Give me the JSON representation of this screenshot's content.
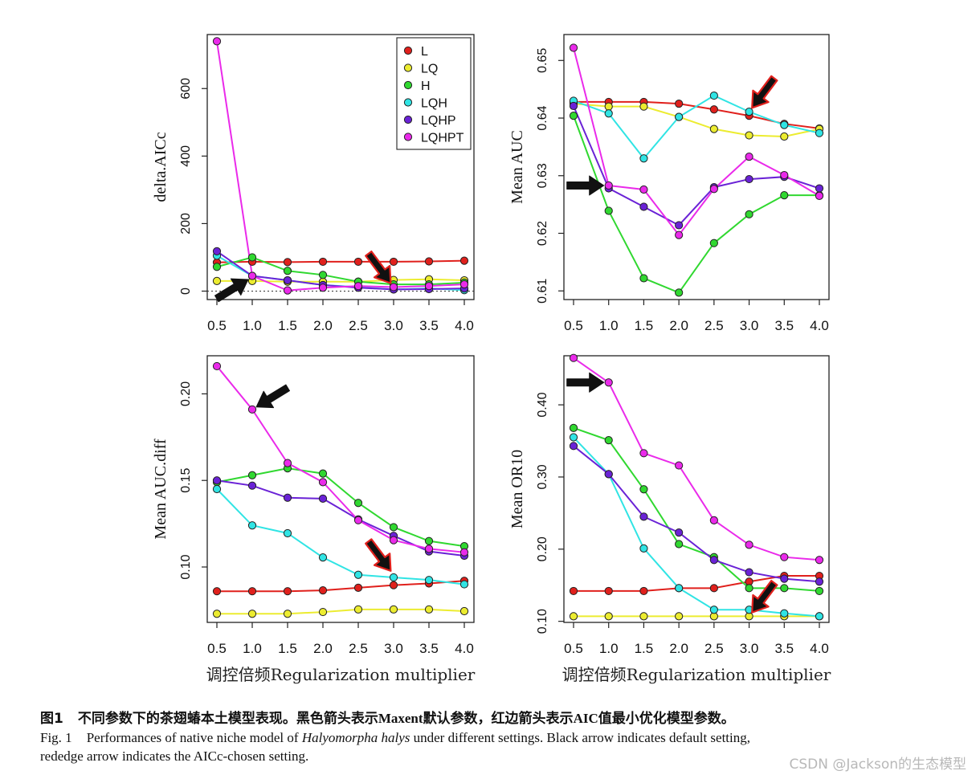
{
  "x_categories": [
    "0.5",
    "1.0",
    "1.5",
    "2.0",
    "2.5",
    "3.0",
    "3.5",
    "4.0"
  ],
  "xlabel": "调控倍频Regularization multiplier",
  "series_colors": {
    "L": "#e0201c",
    "LQ": "#ecec30",
    "H": "#30d830",
    "LQH": "#30e4e4",
    "LQHP": "#6a22d6",
    "LQHPT": "#ea2aea"
  },
  "chart_data": [
    {
      "id": "delta_aicc",
      "type": "line",
      "ylabel": "delta.AICc",
      "ylim": [
        -25,
        760
      ],
      "yticks": [
        0,
        200,
        400,
        600
      ],
      "baseline": 0,
      "legend": "top-right",
      "categories": [
        "0.5",
        "1.0",
        "1.5",
        "2.0",
        "2.5",
        "3.0",
        "3.5",
        "4.0"
      ],
      "series": [
        {
          "name": "L",
          "values": [
            85,
            87,
            86,
            87,
            87,
            87,
            88,
            90
          ]
        },
        {
          "name": "LQ",
          "values": [
            30,
            30,
            28,
            28,
            28,
            33,
            35,
            32
          ]
        },
        {
          "name": "H",
          "values": [
            72,
            100,
            60,
            48,
            28,
            20,
            20,
            25
          ]
        },
        {
          "name": "LQH",
          "values": [
            105,
            45,
            32,
            18,
            12,
            5,
            8,
            3
          ]
        },
        {
          "name": "LQHP",
          "values": [
            118,
            45,
            32,
            18,
            10,
            5,
            6,
            8
          ]
        },
        {
          "name": "LQHPT",
          "values": [
            740,
            45,
            2,
            10,
            15,
            12,
            15,
            20
          ]
        }
      ],
      "arrows": [
        {
          "kind": "black",
          "at_x": 1.0,
          "at_y": 42,
          "dir": "right-up"
        },
        {
          "kind": "red",
          "at_x": 3.0,
          "at_y": 12,
          "dir": "down-right"
        }
      ]
    },
    {
      "id": "mean_auc",
      "type": "line",
      "ylabel": "Mean AUC",
      "ylim": [
        0.6085,
        0.6545
      ],
      "yticks": [
        0.61,
        0.62,
        0.63,
        0.64,
        0.65
      ],
      "categories": [
        "0.5",
        "1.0",
        "1.5",
        "2.0",
        "2.5",
        "3.0",
        "3.5",
        "4.0"
      ],
      "series": [
        {
          "name": "L",
          "values": [
            0.6428,
            0.6428,
            0.6428,
            0.6425,
            0.6415,
            0.6404,
            0.639,
            0.6382
          ]
        },
        {
          "name": "LQ",
          "values": [
            0.6425,
            0.642,
            0.642,
            0.6402,
            0.6381,
            0.637,
            0.6368,
            0.6381
          ]
        },
        {
          "name": "H",
          "values": [
            0.6404,
            0.6239,
            0.6122,
            0.6097,
            0.6183,
            0.6233,
            0.6266,
            0.6266
          ]
        },
        {
          "name": "LQH",
          "values": [
            0.643,
            0.6408,
            0.633,
            0.6402,
            0.6439,
            0.6411,
            0.6388,
            0.6374
          ]
        },
        {
          "name": "LQHP",
          "values": [
            0.6421,
            0.6278,
            0.6246,
            0.6214,
            0.628,
            0.6294,
            0.6298,
            0.6278
          ]
        },
        {
          "name": "LQHPT",
          "values": [
            0.6522,
            0.6283,
            0.6276,
            0.6197,
            0.6277,
            0.6333,
            0.6301,
            0.6265
          ]
        }
      ],
      "arrows": [
        {
          "kind": "black",
          "at_x": 1.0,
          "at_y": 0.6283,
          "dir": "right"
        },
        {
          "kind": "red",
          "at_x": 3.0,
          "at_y": 0.6411,
          "dir": "down-left"
        }
      ]
    },
    {
      "id": "mean_auc_diff",
      "type": "line",
      "ylabel": "Mean AUC.diff",
      "ylim": [
        0.068,
        0.222
      ],
      "yticks": [
        0.1,
        0.15,
        0.2
      ],
      "categories": [
        "0.5",
        "1.0",
        "1.5",
        "2.0",
        "2.5",
        "3.0",
        "3.5",
        "4.0"
      ],
      "series": [
        {
          "name": "L",
          "values": [
            0.086,
            0.086,
            0.086,
            0.0865,
            0.088,
            0.0895,
            0.0905,
            0.092
          ]
        },
        {
          "name": "LQ",
          "values": [
            0.073,
            0.073,
            0.073,
            0.074,
            0.0755,
            0.0755,
            0.0755,
            0.0745
          ]
        },
        {
          "name": "H",
          "values": [
            0.149,
            0.153,
            0.157,
            0.154,
            0.137,
            0.123,
            0.115,
            0.112
          ]
        },
        {
          "name": "LQH",
          "values": [
            0.145,
            0.124,
            0.1195,
            0.1055,
            0.0955,
            0.094,
            0.0925,
            0.09
          ]
        },
        {
          "name": "LQHP",
          "values": [
            0.15,
            0.147,
            0.14,
            0.1395,
            0.1275,
            0.118,
            0.109,
            0.1065
          ]
        },
        {
          "name": "LQHPT",
          "values": [
            0.216,
            0.191,
            0.16,
            0.149,
            0.127,
            0.1155,
            0.1105,
            0.1085
          ]
        }
      ],
      "arrows": [
        {
          "kind": "black",
          "at_x": 1.0,
          "at_y": 0.191,
          "dir": "left-down"
        },
        {
          "kind": "red",
          "at_x": 3.0,
          "at_y": 0.0955,
          "dir": "down-right"
        }
      ]
    },
    {
      "id": "mean_or10",
      "type": "line",
      "ylabel": "Mean OR10",
      "ylim": [
        0.0985,
        0.468
      ],
      "yticks": [
        0.1,
        0.2,
        0.3,
        0.4
      ],
      "categories": [
        "0.5",
        "1.0",
        "1.5",
        "2.0",
        "2.5",
        "3.0",
        "3.5",
        "4.0"
      ],
      "series": [
        {
          "name": "L",
          "values": [
            0.142,
            0.142,
            0.142,
            0.146,
            0.146,
            0.155,
            0.163,
            0.163
          ]
        },
        {
          "name": "LQ",
          "values": [
            0.107,
            0.107,
            0.107,
            0.107,
            0.107,
            0.107,
            0.107,
            0.107
          ]
        },
        {
          "name": "H",
          "values": [
            0.368,
            0.351,
            0.283,
            0.207,
            0.189,
            0.146,
            0.146,
            0.142
          ]
        },
        {
          "name": "LQH",
          "values": [
            0.355,
            0.304,
            0.201,
            0.146,
            0.116,
            0.116,
            0.111,
            0.107
          ]
        },
        {
          "name": "LQHP",
          "values": [
            0.343,
            0.304,
            0.245,
            0.223,
            0.185,
            0.168,
            0.159,
            0.155
          ]
        },
        {
          "name": "LQHPT",
          "values": [
            0.465,
            0.431,
            0.333,
            0.316,
            0.24,
            0.206,
            0.189,
            0.185
          ]
        }
      ],
      "arrows": [
        {
          "kind": "black",
          "at_x": 1.0,
          "at_y": 0.431,
          "dir": "right"
        },
        {
          "kind": "red",
          "at_x": 3.0,
          "at_y": 0.107,
          "dir": "down-left"
        }
      ]
    }
  ],
  "caption": {
    "cn_label": "图1",
    "cn_text_a": "不同参数下的茶翅蝽本土模型表现。黑色箭头表示",
    "cn_bold1": "Maxent",
    "cn_text_b": "默认参数，红边箭头表示",
    "cn_bold2": "AIC",
    "cn_text_c": "值最小优化模型参数。",
    "en_label": "Fig. 1",
    "en_text_a": "Performances of native niche model of ",
    "en_species": "Halyomorpha halys",
    "en_text_b": " under different settings. Black arrow indicates default setting,",
    "en_line2": "rededge arrow indicates the AICc-chosen setting."
  },
  "watermark": "CSDN @Jackson的生态模型"
}
